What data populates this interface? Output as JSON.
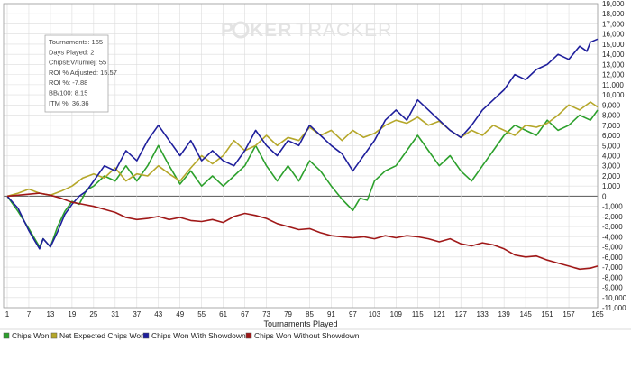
{
  "logo": {
    "text_left": "P",
    "text_mid": "KER",
    "text_right": "TRACKER"
  },
  "stats_box": {
    "lines": [
      "Tournaments: 165",
      "Days Played: 2",
      "ChipsEV/turniej: 55",
      "ROI % Adjusted: 15.57",
      "ROI %: -7.88",
      "BB/100: 8.15",
      "ITM %: 36.36"
    ]
  },
  "colors": {
    "chips_won": "#2ca02c",
    "net_expected": "#b5a72a",
    "with_showdown": "#1f1f9c",
    "without_showdown": "#a01818",
    "grid": "#dcdcdc",
    "zero_line": "#555555"
  },
  "chart_data": {
    "type": "line",
    "title": "",
    "xlabel": "Tournaments Played",
    "ylabel": "",
    "xlim": [
      1,
      165
    ],
    "ylim": [
      -11000,
      19000
    ],
    "x_ticks": [
      1,
      7,
      13,
      19,
      25,
      31,
      37,
      43,
      49,
      55,
      61,
      67,
      73,
      79,
      85,
      91,
      97,
      103,
      109,
      115,
      121,
      127,
      133,
      139,
      145,
      151,
      157,
      165
    ],
    "y_ticks": [
      -11000,
      -10000,
      -9000,
      -8000,
      -7000,
      -6000,
      -5000,
      -4000,
      -3000,
      -2000,
      -1000,
      0,
      1000,
      2000,
      3000,
      4000,
      5000,
      6000,
      7000,
      8000,
      9000,
      10000,
      11000,
      12000,
      13000,
      14000,
      15000,
      16000,
      17000,
      18000,
      19000
    ],
    "y_tick_labels": [
      "-11,000",
      "-10,000",
      "-9,000",
      "-8,000",
      "-7,000",
      "-6,000",
      "-5,000",
      "-4,000",
      "-3,000",
      "-2,000",
      "-1,000",
      "0",
      "1,000",
      "2,000",
      "3,000",
      "4,000",
      "5,000",
      "6,000",
      "7,000",
      "8,000",
      "9,000",
      "10,000",
      "11,000",
      "12,000",
      "13,000",
      "14,000",
      "15,000",
      "16,000",
      "17,000",
      "18,000",
      "19,000"
    ],
    "legend_position": "bottom",
    "series": [
      {
        "name": "Chips Won",
        "color": "#2ca02c",
        "points": [
          [
            1,
            0
          ],
          [
            4,
            -1500
          ],
          [
            7,
            -3200
          ],
          [
            10,
            -5000
          ],
          [
            11,
            -4200
          ],
          [
            13,
            -5000
          ],
          [
            15,
            -3000
          ],
          [
            17,
            -1500
          ],
          [
            19,
            -500
          ],
          [
            21,
            -800
          ],
          [
            23,
            600
          ],
          [
            25,
            1000
          ],
          [
            28,
            2000
          ],
          [
            31,
            1500
          ],
          [
            34,
            3000
          ],
          [
            37,
            1500
          ],
          [
            40,
            3000
          ],
          [
            43,
            5000
          ],
          [
            46,
            3000
          ],
          [
            49,
            1200
          ],
          [
            52,
            2500
          ],
          [
            55,
            1000
          ],
          [
            58,
            2000
          ],
          [
            61,
            1000
          ],
          [
            64,
            2000
          ],
          [
            67,
            3000
          ],
          [
            70,
            5000
          ],
          [
            73,
            3000
          ],
          [
            76,
            1500
          ],
          [
            79,
            3000
          ],
          [
            82,
            1500
          ],
          [
            85,
            3500
          ],
          [
            88,
            2500
          ],
          [
            91,
            1000
          ],
          [
            94,
            -300
          ],
          [
            97,
            -1400
          ],
          [
            99,
            -200
          ],
          [
            101,
            -400
          ],
          [
            103,
            1500
          ],
          [
            106,
            2500
          ],
          [
            109,
            3000
          ],
          [
            112,
            4500
          ],
          [
            115,
            6000
          ],
          [
            118,
            4500
          ],
          [
            121,
            3000
          ],
          [
            124,
            4000
          ],
          [
            127,
            2500
          ],
          [
            130,
            1500
          ],
          [
            133,
            3000
          ],
          [
            136,
            4500
          ],
          [
            139,
            6000
          ],
          [
            142,
            7000
          ],
          [
            145,
            6500
          ],
          [
            148,
            6000
          ],
          [
            151,
            7500
          ],
          [
            154,
            6500
          ],
          [
            157,
            7000
          ],
          [
            160,
            8000
          ],
          [
            163,
            7500
          ],
          [
            165,
            8500
          ]
        ]
      },
      {
        "name": "Net Expected Chips Won",
        "color": "#b5a72a",
        "points": [
          [
            1,
            0
          ],
          [
            4,
            300
          ],
          [
            7,
            700
          ],
          [
            10,
            300
          ],
          [
            13,
            100
          ],
          [
            16,
            500
          ],
          [
            19,
            1000
          ],
          [
            22,
            1800
          ],
          [
            25,
            2200
          ],
          [
            28,
            1800
          ],
          [
            31,
            2800
          ],
          [
            34,
            1500
          ],
          [
            37,
            2200
          ],
          [
            40,
            2000
          ],
          [
            43,
            3000
          ],
          [
            46,
            2200
          ],
          [
            49,
            1500
          ],
          [
            52,
            2800
          ],
          [
            55,
            4000
          ],
          [
            58,
            3200
          ],
          [
            61,
            4000
          ],
          [
            64,
            5500
          ],
          [
            67,
            4500
          ],
          [
            70,
            5000
          ],
          [
            73,
            6000
          ],
          [
            76,
            5000
          ],
          [
            79,
            5800
          ],
          [
            82,
            5500
          ],
          [
            85,
            6800
          ],
          [
            88,
            6000
          ],
          [
            91,
            6500
          ],
          [
            94,
            5500
          ],
          [
            97,
            6500
          ],
          [
            100,
            5800
          ],
          [
            103,
            6200
          ],
          [
            106,
            7000
          ],
          [
            109,
            7500
          ],
          [
            112,
            7200
          ],
          [
            115,
            7800
          ],
          [
            118,
            7000
          ],
          [
            121,
            7400
          ],
          [
            124,
            6500
          ],
          [
            127,
            5800
          ],
          [
            130,
            6500
          ],
          [
            133,
            6000
          ],
          [
            136,
            7000
          ],
          [
            139,
            6500
          ],
          [
            142,
            6000
          ],
          [
            145,
            7000
          ],
          [
            148,
            6800
          ],
          [
            151,
            7200
          ],
          [
            154,
            8000
          ],
          [
            157,
            9000
          ],
          [
            160,
            8500
          ],
          [
            163,
            9300
          ],
          [
            165,
            8800
          ]
        ]
      },
      {
        "name": "Chips Won With Showdown",
        "color": "#1f1f9c",
        "points": [
          [
            1,
            0
          ],
          [
            4,
            -1200
          ],
          [
            7,
            -3400
          ],
          [
            10,
            -5200
          ],
          [
            11,
            -4200
          ],
          [
            13,
            -5000
          ],
          [
            15,
            -3500
          ],
          [
            17,
            -1800
          ],
          [
            19,
            -800
          ],
          [
            21,
            0
          ],
          [
            23,
            500
          ],
          [
            25,
            1500
          ],
          [
            28,
            3000
          ],
          [
            31,
            2500
          ],
          [
            34,
            4500
          ],
          [
            37,
            3500
          ],
          [
            40,
            5500
          ],
          [
            43,
            7000
          ],
          [
            46,
            5500
          ],
          [
            49,
            4000
          ],
          [
            52,
            5500
          ],
          [
            55,
            3500
          ],
          [
            58,
            4500
          ],
          [
            61,
            3500
          ],
          [
            64,
            3000
          ],
          [
            67,
            4500
          ],
          [
            70,
            6500
          ],
          [
            73,
            5000
          ],
          [
            76,
            4000
          ],
          [
            79,
            5500
          ],
          [
            82,
            5000
          ],
          [
            85,
            7000
          ],
          [
            88,
            6000
          ],
          [
            91,
            5000
          ],
          [
            94,
            4200
          ],
          [
            97,
            2500
          ],
          [
            99,
            3500
          ],
          [
            101,
            4500
          ],
          [
            103,
            5500
          ],
          [
            106,
            7500
          ],
          [
            109,
            8500
          ],
          [
            112,
            7500
          ],
          [
            115,
            9500
          ],
          [
            118,
            8500
          ],
          [
            121,
            7500
          ],
          [
            124,
            6500
          ],
          [
            127,
            5800
          ],
          [
            130,
            7000
          ],
          [
            133,
            8500
          ],
          [
            136,
            9500
          ],
          [
            139,
            10500
          ],
          [
            142,
            12000
          ],
          [
            145,
            11500
          ],
          [
            148,
            12500
          ],
          [
            151,
            13000
          ],
          [
            154,
            14000
          ],
          [
            157,
            13500
          ],
          [
            160,
            14800
          ],
          [
            162,
            14300
          ],
          [
            163,
            15200
          ],
          [
            165,
            15500
          ]
        ]
      },
      {
        "name": "Chips Won Without Showdown",
        "color": "#a01818",
        "points": [
          [
            1,
            0
          ],
          [
            4,
            100
          ],
          [
            7,
            200
          ],
          [
            10,
            300
          ],
          [
            13,
            100
          ],
          [
            16,
            -200
          ],
          [
            19,
            -600
          ],
          [
            22,
            -800
          ],
          [
            25,
            -1000
          ],
          [
            28,
            -1300
          ],
          [
            31,
            -1600
          ],
          [
            34,
            -2100
          ],
          [
            37,
            -2300
          ],
          [
            40,
            -2200
          ],
          [
            43,
            -2000
          ],
          [
            46,
            -2300
          ],
          [
            49,
            -2100
          ],
          [
            52,
            -2400
          ],
          [
            55,
            -2500
          ],
          [
            58,
            -2300
          ],
          [
            61,
            -2600
          ],
          [
            64,
            -2000
          ],
          [
            67,
            -1700
          ],
          [
            70,
            -1900
          ],
          [
            73,
            -2200
          ],
          [
            76,
            -2700
          ],
          [
            79,
            -3000
          ],
          [
            82,
            -3300
          ],
          [
            85,
            -3200
          ],
          [
            88,
            -3600
          ],
          [
            91,
            -3900
          ],
          [
            94,
            -4000
          ],
          [
            97,
            -4100
          ],
          [
            100,
            -4000
          ],
          [
            103,
            -4200
          ],
          [
            106,
            -3900
          ],
          [
            109,
            -4100
          ],
          [
            112,
            -3900
          ],
          [
            115,
            -4000
          ],
          [
            118,
            -4200
          ],
          [
            121,
            -4500
          ],
          [
            124,
            -4200
          ],
          [
            127,
            -4700
          ],
          [
            130,
            -4900
          ],
          [
            133,
            -4600
          ],
          [
            136,
            -4800
          ],
          [
            139,
            -5200
          ],
          [
            142,
            -5800
          ],
          [
            145,
            -6000
          ],
          [
            148,
            -5900
          ],
          [
            151,
            -6300
          ],
          [
            154,
            -6600
          ],
          [
            157,
            -6900
          ],
          [
            160,
            -7200
          ],
          [
            163,
            -7100
          ],
          [
            165,
            -6900
          ]
        ]
      }
    ]
  }
}
